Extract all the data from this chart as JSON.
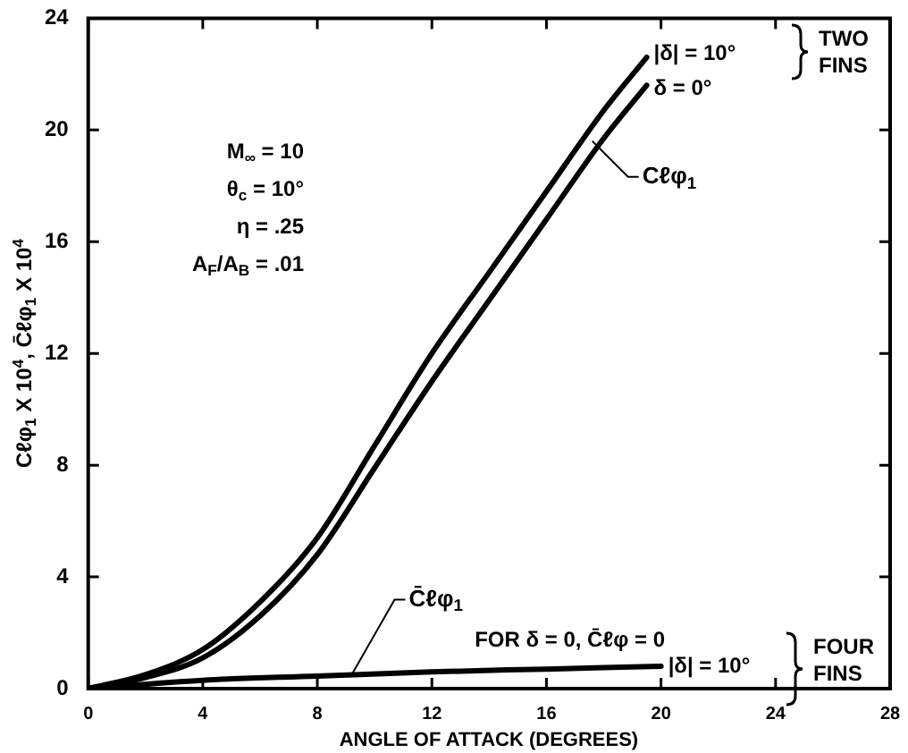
{
  "chart_data": {
    "type": "line",
    "xlabel": "ANGLE OF ATTACK (DEGREES)",
    "ylabel": "Cℓφ$_{1}$ X 10$^{4}$, C̄ℓφ$_{1}$ X 10$^{4}$",
    "xlim": [
      0,
      28
    ],
    "xticks": [
      0,
      4,
      8,
      12,
      16,
      20,
      24,
      28
    ],
    "ylim": [
      0,
      24
    ],
    "yticks": [
      0,
      4,
      8,
      12,
      16,
      20,
      24
    ],
    "grid": false,
    "marker": "none",
    "line_style": "solid",
    "series": [
      {
        "color": "#000000",
        "x": [
          0,
          2,
          4,
          6,
          8,
          10,
          12,
          14,
          16,
          18,
          19.5
        ],
        "values": [
          0,
          0.5,
          1.4,
          3.1,
          5.4,
          8.7,
          12.0,
          14.9,
          17.8,
          20.7,
          22.6
        ]
      },
      {
        "color": "#000000",
        "x": [
          0,
          2,
          4,
          6,
          8,
          10,
          12,
          14,
          16,
          18,
          19.5
        ],
        "values": [
          0,
          0.4,
          1.1,
          2.6,
          4.8,
          7.9,
          11.0,
          13.9,
          16.8,
          19.7,
          21.6
        ]
      },
      {
        "color": "#000000",
        "x": [
          0,
          4,
          8,
          12,
          16,
          20
        ],
        "values": [
          0,
          0.3,
          0.45,
          0.6,
          0.7,
          0.8
        ]
      }
    ],
    "annotations": [
      "M$_{∞}$ = 10",
      "θ$_{c}$ = 10°",
      "η = .25",
      "A$_{F}$/A$_{B}$ = .01",
      "TWO FINS",
      "FOR δ = 0, C̄ℓφ = 0",
      "FOUR FINS",
      {
        "text": "|δ| = 10°",
        "x": 19.5,
        "y": 22.6
      },
      {
        "text": "δ = 0°",
        "x": 19.5,
        "y": 21.6
      },
      {
        "text": "Cℓφ$_{1}$",
        "x": 17.6,
        "y": 19.6
      },
      {
        "text": "C̄ℓφ$_{1}$",
        "x": 9.2,
        "y": 0.5
      },
      {
        "text": "|δ| = 10°",
        "x": 20,
        "y": 0.8
      }
    ]
  }
}
